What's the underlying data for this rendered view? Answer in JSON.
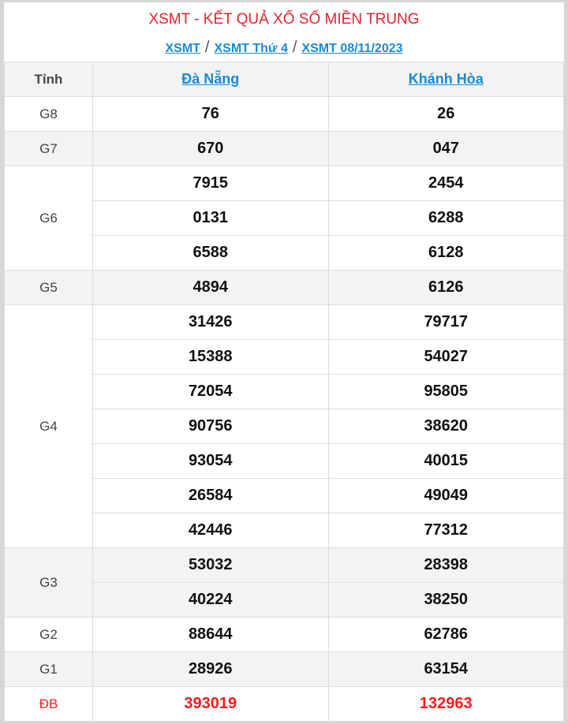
{
  "title": "XSMT - KẾT QUẢ XỔ SỐ MIỀN TRUNG",
  "breadcrumb": [
    "XSMT",
    "XSMT Thứ 4",
    "XSMT 08/11/2023"
  ],
  "breadcrumb_sep": "/",
  "header": {
    "label": "Tỉnh",
    "provinces": [
      "Đà Nẵng",
      "Khánh Hòa"
    ]
  },
  "prizes": [
    {
      "name": "G8",
      "a": [
        "76"
      ],
      "b": [
        "26"
      ]
    },
    {
      "name": "G7",
      "a": [
        "670"
      ],
      "b": [
        "047"
      ]
    },
    {
      "name": "G6",
      "a": [
        "7915",
        "0131",
        "6588"
      ],
      "b": [
        "2454",
        "6288",
        "6128"
      ]
    },
    {
      "name": "G5",
      "a": [
        "4894"
      ],
      "b": [
        "6126"
      ]
    },
    {
      "name": "G4",
      "a": [
        "31426",
        "15388",
        "72054",
        "90756",
        "93054",
        "26584",
        "42446"
      ],
      "b": [
        "79717",
        "54027",
        "95805",
        "38620",
        "40015",
        "49049",
        "77312"
      ]
    },
    {
      "name": "G3",
      "a": [
        "53032",
        "40224"
      ],
      "b": [
        "28398",
        "38250"
      ]
    },
    {
      "name": "G2",
      "a": [
        "88644"
      ],
      "b": [
        "62786"
      ]
    },
    {
      "name": "G1",
      "a": [
        "28926"
      ],
      "b": [
        "63154"
      ]
    },
    {
      "name": "ĐB",
      "a": [
        "393019"
      ],
      "b": [
        "132963"
      ]
    }
  ],
  "colors": {
    "title": "#e0242f",
    "link": "#1a8ad6",
    "special": "#ff1a1a"
  }
}
